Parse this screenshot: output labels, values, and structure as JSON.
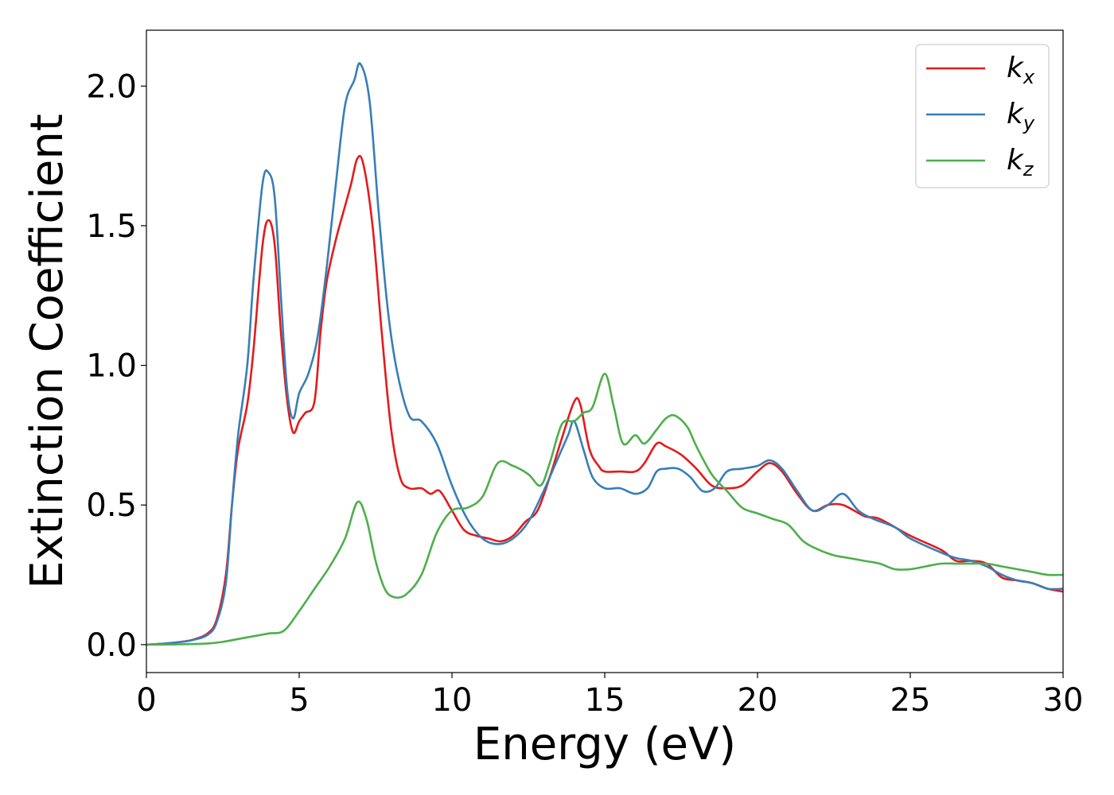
{
  "chart_data": {
    "type": "line",
    "title": "",
    "xlabel": "Energy (eV)",
    "ylabel": "Extinction Coefficient",
    "xlim": [
      0,
      30
    ],
    "ylim": [
      -0.1,
      2.2
    ],
    "xticks": [
      0,
      5,
      10,
      15,
      20,
      25,
      30
    ],
    "xtick_labels": [
      "0",
      "5",
      "10",
      "15",
      "20",
      "25",
      "30"
    ],
    "yticks": [
      0.0,
      0.5,
      1.0,
      1.5,
      2.0
    ],
    "ytick_labels": [
      "0.0",
      "0.5",
      "1.0",
      "1.5",
      "2.0"
    ],
    "grid": false,
    "legend_position": "top-right",
    "series": [
      {
        "name": "k_x",
        "legend_base": "k",
        "legend_sub": "x",
        "color": "#e41a1c",
        "points": [
          [
            0,
            0
          ],
          [
            0.5,
            0.003
          ],
          [
            1,
            0.008
          ],
          [
            1.5,
            0.017
          ],
          [
            2,
            0.04
          ],
          [
            2.3,
            0.09
          ],
          [
            2.6,
            0.25
          ],
          [
            2.8,
            0.5
          ],
          [
            3,
            0.7
          ],
          [
            3.3,
            0.86
          ],
          [
            3.5,
            1.05
          ],
          [
            3.8,
            1.43
          ],
          [
            4,
            1.52
          ],
          [
            4.2,
            1.43
          ],
          [
            4.4,
            1.12
          ],
          [
            4.6,
            0.88
          ],
          [
            4.8,
            0.76
          ],
          [
            5,
            0.8
          ],
          [
            5.2,
            0.83
          ],
          [
            5.5,
            0.87
          ],
          [
            5.7,
            1.12
          ],
          [
            5.9,
            1.3
          ],
          [
            6.2,
            1.45
          ],
          [
            6.5,
            1.57
          ],
          [
            6.7,
            1.65
          ],
          [
            6.9,
            1.74
          ],
          [
            7.1,
            1.72
          ],
          [
            7.4,
            1.5
          ],
          [
            7.7,
            1.12
          ],
          [
            8,
            0.78
          ],
          [
            8.3,
            0.6
          ],
          [
            8.6,
            0.56
          ],
          [
            9,
            0.56
          ],
          [
            9.3,
            0.54
          ],
          [
            9.6,
            0.55
          ],
          [
            10,
            0.48
          ],
          [
            10.4,
            0.41
          ],
          [
            10.8,
            0.39
          ],
          [
            11.2,
            0.38
          ],
          [
            11.6,
            0.37
          ],
          [
            12,
            0.39
          ],
          [
            12.4,
            0.44
          ],
          [
            12.8,
            0.48
          ],
          [
            13.2,
            0.6
          ],
          [
            13.6,
            0.74
          ],
          [
            14,
            0.87
          ],
          [
            14.2,
            0.86
          ],
          [
            14.5,
            0.7
          ],
          [
            14.8,
            0.64
          ],
          [
            15,
            0.62
          ],
          [
            15.5,
            0.62
          ],
          [
            16,
            0.62
          ],
          [
            16.3,
            0.65
          ],
          [
            16.7,
            0.72
          ],
          [
            17,
            0.71
          ],
          [
            17.5,
            0.68
          ],
          [
            18,
            0.63
          ],
          [
            18.5,
            0.57
          ],
          [
            19,
            0.56
          ],
          [
            19.5,
            0.57
          ],
          [
            20,
            0.62
          ],
          [
            20.4,
            0.65
          ],
          [
            20.8,
            0.62
          ],
          [
            21.3,
            0.54
          ],
          [
            21.8,
            0.48
          ],
          [
            22.3,
            0.5
          ],
          [
            22.8,
            0.5
          ],
          [
            23.5,
            0.46
          ],
          [
            24,
            0.45
          ],
          [
            25,
            0.39
          ],
          [
            26,
            0.34
          ],
          [
            26.5,
            0.3
          ],
          [
            27,
            0.3
          ],
          [
            27.5,
            0.29
          ],
          [
            28,
            0.24
          ],
          [
            28.5,
            0.23
          ],
          [
            29,
            0.22
          ],
          [
            29.5,
            0.2
          ],
          [
            30,
            0.19
          ]
        ]
      },
      {
        "name": "k_y",
        "legend_base": "k",
        "legend_sub": "y",
        "color": "#377eb8",
        "points": [
          [
            0,
            0
          ],
          [
            0.5,
            0.003
          ],
          [
            1,
            0.008
          ],
          [
            1.5,
            0.016
          ],
          [
            2,
            0.035
          ],
          [
            2.3,
            0.08
          ],
          [
            2.6,
            0.22
          ],
          [
            2.8,
            0.5
          ],
          [
            3,
            0.75
          ],
          [
            3.3,
            1.0
          ],
          [
            3.5,
            1.3
          ],
          [
            3.8,
            1.65
          ],
          [
            4,
            1.69
          ],
          [
            4.2,
            1.6
          ],
          [
            4.4,
            1.25
          ],
          [
            4.6,
            0.92
          ],
          [
            4.8,
            0.81
          ],
          [
            5,
            0.9
          ],
          [
            5.3,
            0.97
          ],
          [
            5.6,
            1.1
          ],
          [
            5.9,
            1.35
          ],
          [
            6.2,
            1.65
          ],
          [
            6.5,
            1.93
          ],
          [
            6.8,
            2.02
          ],
          [
            7,
            2.08
          ],
          [
            7.3,
            1.95
          ],
          [
            7.6,
            1.55
          ],
          [
            7.9,
            1.2
          ],
          [
            8.2,
            0.98
          ],
          [
            8.6,
            0.82
          ],
          [
            9,
            0.8
          ],
          [
            9.5,
            0.72
          ],
          [
            10,
            0.57
          ],
          [
            10.5,
            0.45
          ],
          [
            11,
            0.38
          ],
          [
            11.5,
            0.36
          ],
          [
            12,
            0.38
          ],
          [
            12.5,
            0.44
          ],
          [
            13,
            0.55
          ],
          [
            13.4,
            0.65
          ],
          [
            13.8,
            0.75
          ],
          [
            14,
            0.8
          ],
          [
            14.3,
            0.7
          ],
          [
            14.6,
            0.6
          ],
          [
            15,
            0.56
          ],
          [
            15.5,
            0.56
          ],
          [
            16,
            0.54
          ],
          [
            16.4,
            0.56
          ],
          [
            16.7,
            0.62
          ],
          [
            17,
            0.63
          ],
          [
            17.4,
            0.63
          ],
          [
            17.8,
            0.6
          ],
          [
            18.2,
            0.55
          ],
          [
            18.6,
            0.56
          ],
          [
            19,
            0.62
          ],
          [
            19.5,
            0.63
          ],
          [
            20,
            0.64
          ],
          [
            20.4,
            0.66
          ],
          [
            20.8,
            0.63
          ],
          [
            21.3,
            0.55
          ],
          [
            21.8,
            0.48
          ],
          [
            22.3,
            0.5
          ],
          [
            22.8,
            0.54
          ],
          [
            23.3,
            0.48
          ],
          [
            23.8,
            0.45
          ],
          [
            24.5,
            0.42
          ],
          [
            25,
            0.38
          ],
          [
            26,
            0.33
          ],
          [
            26.5,
            0.31
          ],
          [
            27,
            0.3
          ],
          [
            27.5,
            0.28
          ],
          [
            28,
            0.25
          ],
          [
            28.5,
            0.23
          ],
          [
            29,
            0.22
          ],
          [
            29.5,
            0.2
          ],
          [
            30,
            0.2
          ]
        ]
      },
      {
        "name": "k_z",
        "legend_base": "k",
        "legend_sub": "z",
        "color": "#4daf4a",
        "points": [
          [
            0,
            0
          ],
          [
            1,
            0.001
          ],
          [
            2,
            0.004
          ],
          [
            2.5,
            0.01
          ],
          [
            3,
            0.02
          ],
          [
            3.5,
            0.03
          ],
          [
            4,
            0.04
          ],
          [
            4.5,
            0.05
          ],
          [
            5,
            0.12
          ],
          [
            5.5,
            0.2
          ],
          [
            6,
            0.28
          ],
          [
            6.5,
            0.38
          ],
          [
            6.9,
            0.51
          ],
          [
            7.2,
            0.45
          ],
          [
            7.5,
            0.3
          ],
          [
            7.8,
            0.2
          ],
          [
            8.1,
            0.17
          ],
          [
            8.5,
            0.18
          ],
          [
            9,
            0.25
          ],
          [
            9.5,
            0.4
          ],
          [
            10,
            0.48
          ],
          [
            10.5,
            0.49
          ],
          [
            11,
            0.53
          ],
          [
            11.5,
            0.65
          ],
          [
            12,
            0.64
          ],
          [
            12.5,
            0.61
          ],
          [
            12.9,
            0.57
          ],
          [
            13.2,
            0.65
          ],
          [
            13.6,
            0.79
          ],
          [
            14,
            0.8
          ],
          [
            14.3,
            0.83
          ],
          [
            14.6,
            0.85
          ],
          [
            15,
            0.97
          ],
          [
            15.3,
            0.85
          ],
          [
            15.6,
            0.72
          ],
          [
            16,
            0.75
          ],
          [
            16.3,
            0.72
          ],
          [
            16.7,
            0.77
          ],
          [
            17,
            0.81
          ],
          [
            17.3,
            0.82
          ],
          [
            17.7,
            0.78
          ],
          [
            18,
            0.71
          ],
          [
            18.5,
            0.61
          ],
          [
            19,
            0.55
          ],
          [
            19.5,
            0.49
          ],
          [
            20,
            0.47
          ],
          [
            20.5,
            0.45
          ],
          [
            21,
            0.43
          ],
          [
            21.5,
            0.37
          ],
          [
            22,
            0.34
          ],
          [
            22.5,
            0.32
          ],
          [
            23,
            0.31
          ],
          [
            23.5,
            0.3
          ],
          [
            24,
            0.29
          ],
          [
            24.5,
            0.27
          ],
          [
            25,
            0.27
          ],
          [
            25.5,
            0.28
          ],
          [
            26,
            0.29
          ],
          [
            26.5,
            0.29
          ],
          [
            27,
            0.29
          ],
          [
            27.5,
            0.29
          ],
          [
            28,
            0.28
          ],
          [
            28.5,
            0.27
          ],
          [
            29,
            0.26
          ],
          [
            29.5,
            0.25
          ],
          [
            30,
            0.25
          ]
        ]
      }
    ]
  }
}
